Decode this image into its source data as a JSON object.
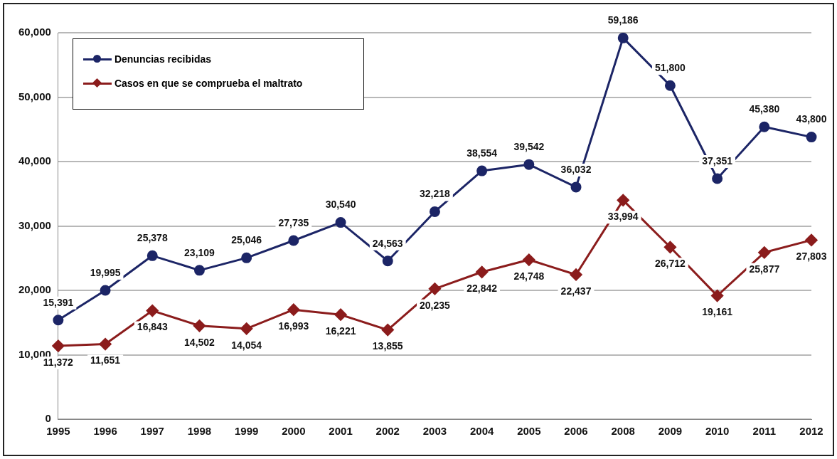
{
  "chart_data": {
    "type": "line",
    "categories": [
      "1995",
      "1996",
      "1997",
      "1998",
      "1999",
      "2000",
      "2001",
      "2002",
      "2003",
      "2004",
      "2005",
      "2006",
      "2008",
      "2009",
      "2010",
      "2011",
      "2012"
    ],
    "series": [
      {
        "name": "Denuncias recibidas",
        "color": "#1c2566",
        "marker": "circle",
        "values": [
          15391,
          19995,
          25378,
          23109,
          25046,
          27735,
          30540,
          24563,
          32218,
          38554,
          39542,
          36032,
          59186,
          51800,
          37351,
          45380,
          43800
        ],
        "value_labels": [
          "15,391",
          "19,995",
          "25,378",
          "23,109",
          "25,046",
          "27,735",
          "30,540",
          "24,563",
          "32,218",
          "38,554",
          "39,542",
          "36,032",
          "59,186",
          "51,800",
          "37,351",
          "45,380",
          "43,800"
        ]
      },
      {
        "name": "Casos en que se comprueba el maltrato",
        "color": "#8b1c1c",
        "marker": "diamond",
        "values": [
          11372,
          11651,
          16843,
          14502,
          14054,
          16993,
          16221,
          13855,
          20235,
          22842,
          24748,
          22437,
          33994,
          26712,
          19161,
          25877,
          27803
        ],
        "value_labels": [
          "11,372",
          "11,651",
          "16,843",
          "14,502",
          "14,054",
          "16,993",
          "16,221",
          "13,855",
          "20,235",
          "22,842",
          "24,748",
          "22,437",
          "33,994",
          "26,712",
          "19,161",
          "25,877",
          "27,803"
        ]
      }
    ],
    "ylim": [
      0,
      60000
    ],
    "yticks": [
      {
        "value": 0,
        "label": "0"
      },
      {
        "value": 10000,
        "label": "10,000"
      },
      {
        "value": 20000,
        "label": "20,000"
      },
      {
        "value": 30000,
        "label": "30,000"
      },
      {
        "value": 40000,
        "label": "40,000"
      },
      {
        "value": 50000,
        "label": "50,000"
      },
      {
        "value": 60000,
        "label": "60,000"
      }
    ],
    "grid": "y",
    "legend": "top left",
    "line_style": "solid"
  }
}
